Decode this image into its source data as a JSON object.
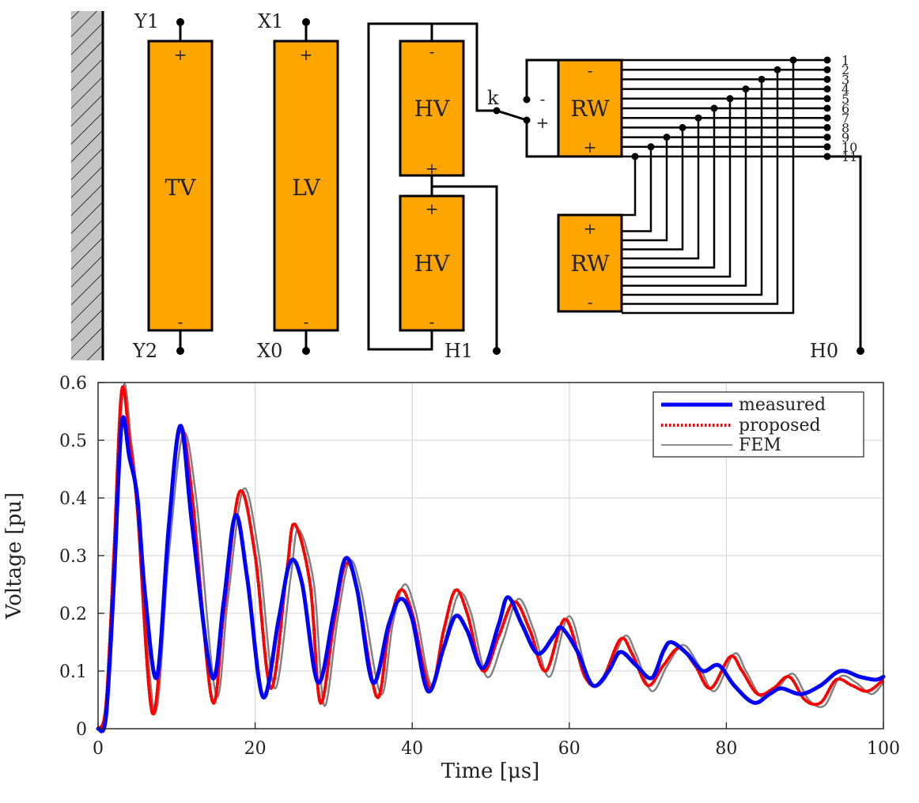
{
  "colors": {
    "winding": "#FFA500",
    "measured": "#0000FF",
    "proposed": "#FF0000",
    "fem": "#808080",
    "wall": "#c0c0c0"
  },
  "diagram": {
    "windings": {
      "tv": "TV",
      "lv": "LV",
      "hv_top": "HV",
      "hv_bottom": "HV",
      "rw_top": "RW",
      "rw_bottom": "RW"
    },
    "terminals": {
      "y1": "Y1",
      "y2": "Y2",
      "x1": "X1",
      "x0": "X0",
      "h1": "H1",
      "h0": "H0"
    },
    "switch_label": "k",
    "plus": "+",
    "minus": "-",
    "taps": [
      "1",
      "2",
      "3",
      "4",
      "5",
      "6",
      "7",
      "8",
      "9",
      "10",
      "11"
    ]
  },
  "chart_data": {
    "type": "line",
    "xlabel": "Time [μs]",
    "ylabel": "Voltage [pu]",
    "xlim": [
      0,
      100
    ],
    "ylim": [
      0,
      0.6
    ],
    "xticks": [
      0,
      20,
      40,
      60,
      80,
      100
    ],
    "yticks": [
      0,
      0.1,
      0.2,
      0.3,
      0.4,
      0.5,
      0.6
    ],
    "ytick_labels": [
      "0",
      "0.1",
      "0.2",
      "0.3",
      "0.4",
      "0.5",
      "0.6"
    ],
    "grid": true,
    "legend_position": "top-right",
    "series": [
      {
        "name": "measured",
        "style": "solid-thick",
        "x": [
          0,
          1,
          2,
          3,
          4,
          5,
          6,
          7.5,
          9,
          10.5,
          12,
          14.5,
          16,
          17.5,
          19,
          21,
          23,
          24.5,
          26,
          28,
          30,
          31.5,
          33,
          35,
          37,
          38.5,
          40,
          42,
          44,
          45.5,
          47,
          49,
          51,
          52.2,
          54,
          56,
          58,
          59,
          61,
          63,
          65,
          66.5,
          68.5,
          70.5,
          72,
          73,
          75,
          77,
          79,
          81,
          83.5,
          85.5,
          87,
          89.5,
          92,
          94.5,
          97,
          99,
          100
        ],
        "y": [
          0,
          0.02,
          0.25,
          0.53,
          0.47,
          0.4,
          0.23,
          0.09,
          0.35,
          0.525,
          0.35,
          0.09,
          0.22,
          0.37,
          0.26,
          0.055,
          0.19,
          0.29,
          0.25,
          0.08,
          0.2,
          0.295,
          0.24,
          0.08,
          0.18,
          0.225,
          0.19,
          0.065,
          0.14,
          0.195,
          0.17,
          0.105,
          0.18,
          0.228,
          0.18,
          0.13,
          0.16,
          0.175,
          0.135,
          0.075,
          0.1,
          0.133,
          0.11,
          0.088,
          0.135,
          0.15,
          0.13,
          0.1,
          0.11,
          0.075,
          0.045,
          0.06,
          0.07,
          0.06,
          0.075,
          0.1,
          0.09,
          0.085,
          0.09
        ]
      },
      {
        "name": "proposed",
        "style": "dotted",
        "x": [
          0,
          1,
          2,
          3,
          4,
          5,
          7,
          9,
          10.5,
          12,
          14.5,
          16,
          18,
          20,
          22,
          24,
          25,
          27,
          28.3,
          30,
          31.5,
          33,
          35.5,
          37,
          38.5,
          40,
          42.3,
          44,
          45.5,
          47,
          49,
          51,
          53,
          55,
          57,
          59.5,
          62,
          64,
          66.5,
          68,
          70,
          72,
          74,
          76,
          78,
          80.5,
          82,
          84,
          86,
          88,
          90,
          92,
          94,
          96,
          98,
          100
        ],
        "y": [
          0,
          0.04,
          0.3,
          0.585,
          0.5,
          0.38,
          0.025,
          0.35,
          0.52,
          0.4,
          0.05,
          0.2,
          0.41,
          0.3,
          0.07,
          0.27,
          0.355,
          0.25,
          0.045,
          0.18,
          0.285,
          0.24,
          0.055,
          0.17,
          0.24,
          0.2,
          0.07,
          0.17,
          0.24,
          0.2,
          0.1,
          0.16,
          0.22,
          0.17,
          0.1,
          0.19,
          0.09,
          0.08,
          0.155,
          0.13,
          0.075,
          0.11,
          0.14,
          0.11,
          0.07,
          0.125,
          0.1,
          0.06,
          0.07,
          0.09,
          0.05,
          0.045,
          0.085,
          0.075,
          0.065,
          0.085
        ]
      },
      {
        "name": "FEM",
        "style": "solid-thin",
        "x": [
          0,
          1,
          2,
          3.2,
          4.2,
          5,
          7.2,
          9,
          10.8,
          12.5,
          15,
          16.5,
          18.5,
          20.5,
          22.5,
          24.5,
          25.5,
          27.5,
          28.8,
          30.5,
          32,
          33.5,
          36,
          37.5,
          39,
          40.5,
          42.5,
          44.5,
          46,
          47.5,
          49.5,
          51.5,
          53.5,
          55.5,
          57.5,
          60,
          62.5,
          64.5,
          67,
          68.5,
          70.5,
          72.5,
          74.5,
          76.5,
          78.5,
          81,
          82.5,
          84.5,
          86.5,
          88.5,
          90.5,
          92.5,
          94.5,
          96.5,
          98.5,
          100
        ],
        "y": [
          0,
          0.03,
          0.28,
          0.59,
          0.5,
          0.4,
          0.03,
          0.3,
          0.51,
          0.4,
          0.06,
          0.22,
          0.415,
          0.3,
          0.07,
          0.26,
          0.345,
          0.25,
          0.04,
          0.19,
          0.29,
          0.24,
          0.06,
          0.18,
          0.25,
          0.2,
          0.075,
          0.17,
          0.235,
          0.2,
          0.09,
          0.15,
          0.225,
          0.17,
          0.09,
          0.195,
          0.085,
          0.085,
          0.16,
          0.13,
          0.065,
          0.11,
          0.145,
          0.11,
          0.065,
          0.13,
          0.1,
          0.055,
          0.07,
          0.095,
          0.05,
          0.04,
          0.09,
          0.08,
          0.06,
          0.08
        ]
      }
    ]
  }
}
